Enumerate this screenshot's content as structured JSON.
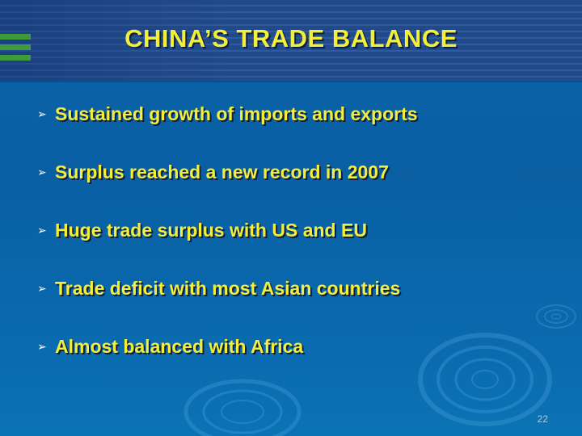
{
  "slide": {
    "title": "CHINA’S TRADE BALANCE",
    "bullet_marker": "➢",
    "bullets": [
      "Sustained growth of imports and exports",
      "Surplus reached a new record in 2007",
      "Huge trade surplus with US and EU",
      "Trade deficit with most Asian countries",
      "Almost balanced with Africa"
    ],
    "page_number": "22"
  },
  "colors": {
    "background": "#0a64a8",
    "header_band": "#234a88",
    "title_text": "#f3ee3a",
    "bullet_text": "#f3ee3a",
    "accent_green": "#3f9a3a"
  }
}
